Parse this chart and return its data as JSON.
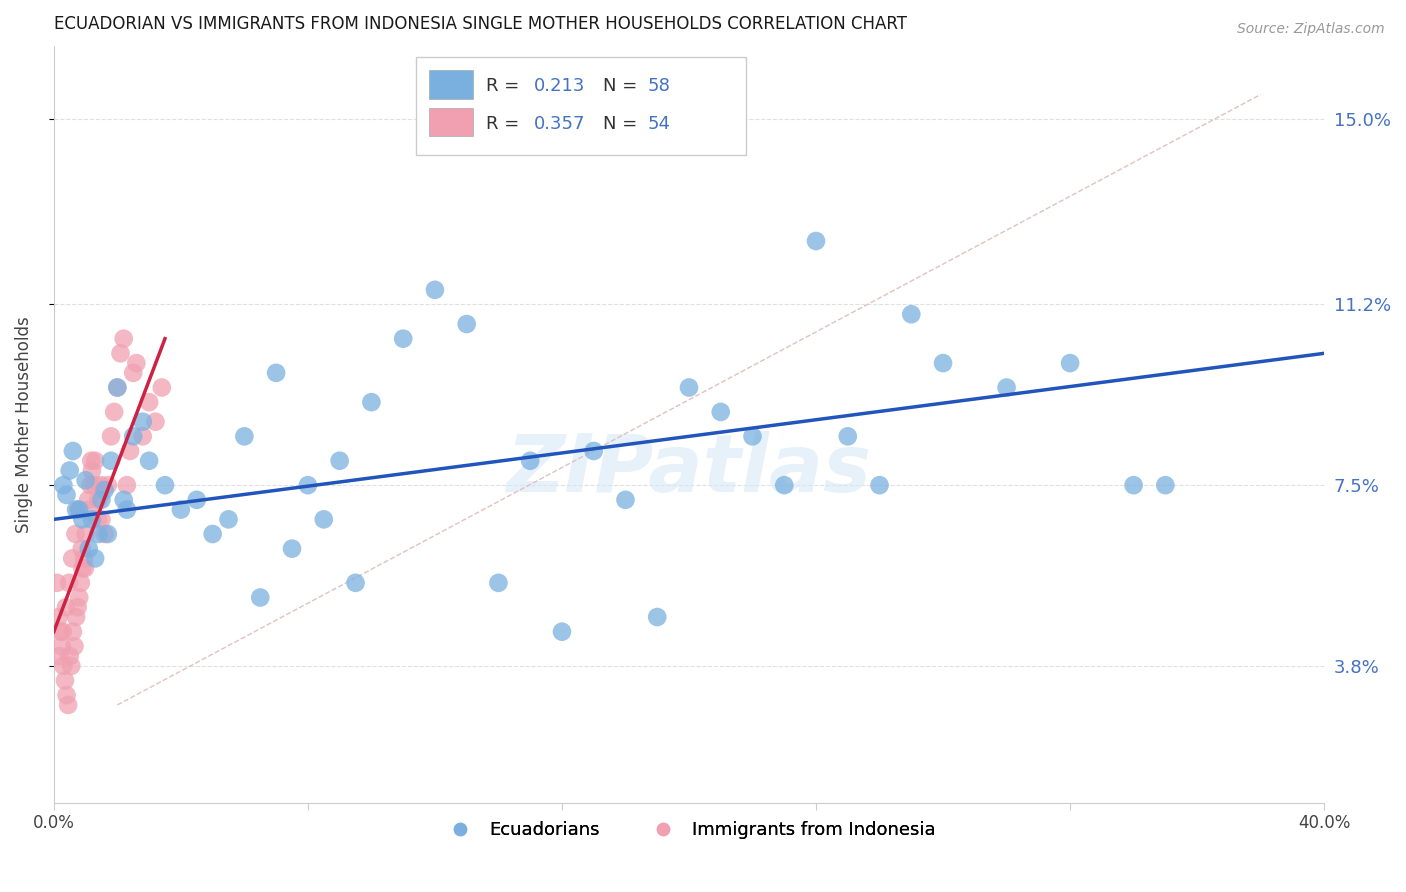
{
  "title": "ECUADORIAN VS IMMIGRANTS FROM INDONESIA SINGLE MOTHER HOUSEHOLDS CORRELATION CHART",
  "source": "Source: ZipAtlas.com",
  "ylabel": "Single Mother Households",
  "ytick_labels": [
    "3.8%",
    "7.5%",
    "11.2%",
    "15.0%"
  ],
  "ytick_values": [
    3.8,
    7.5,
    11.2,
    15.0
  ],
  "xlim": [
    0.0,
    40.0
  ],
  "ylim": [
    1.0,
    16.5
  ],
  "blue_color": "#7ab0e0",
  "pink_color": "#f0a0b0",
  "line_blue": "#2255bb",
  "line_pink": "#cc2244",
  "diagonal_color": "#ddbbbb",
  "watermark": "ZIPatlas",
  "ecuadorians_x": [
    0.3,
    0.5,
    0.6,
    0.8,
    1.0,
    1.2,
    1.4,
    1.5,
    1.6,
    1.8,
    2.0,
    2.2,
    2.5,
    2.8,
    3.0,
    3.5,
    4.0,
    4.5,
    5.0,
    5.5,
    6.0,
    6.5,
    7.0,
    7.5,
    8.0,
    8.5,
    9.0,
    9.5,
    10.0,
    11.0,
    12.0,
    13.0,
    14.0,
    15.0,
    16.0,
    17.0,
    18.0,
    19.0,
    20.0,
    21.0,
    22.0,
    23.0,
    24.0,
    25.0,
    26.0,
    27.0,
    28.0,
    30.0,
    32.0,
    34.0,
    35.0,
    0.4,
    0.7,
    0.9,
    1.1,
    1.3,
    1.7,
    2.3
  ],
  "ecuadorians_y": [
    7.5,
    7.8,
    8.2,
    7.0,
    7.6,
    6.8,
    6.5,
    7.2,
    7.4,
    8.0,
    9.5,
    7.2,
    8.5,
    8.8,
    8.0,
    7.5,
    7.0,
    7.2,
    6.5,
    6.8,
    8.5,
    5.2,
    9.8,
    6.2,
    7.5,
    6.8,
    8.0,
    5.5,
    9.2,
    10.5,
    11.5,
    10.8,
    5.5,
    8.0,
    4.5,
    8.2,
    7.2,
    4.8,
    9.5,
    9.0,
    8.5,
    7.5,
    12.5,
    8.5,
    7.5,
    11.0,
    10.0,
    9.5,
    10.0,
    7.5,
    7.5,
    7.3,
    7.0,
    6.8,
    6.2,
    6.0,
    6.5,
    7.0
  ],
  "indonesia_x": [
    0.1,
    0.15,
    0.2,
    0.25,
    0.3,
    0.35,
    0.4,
    0.45,
    0.5,
    0.55,
    0.6,
    0.65,
    0.7,
    0.75,
    0.8,
    0.85,
    0.9,
    0.95,
    1.0,
    1.1,
    1.15,
    1.2,
    1.3,
    1.4,
    1.5,
    1.6,
    1.7,
    1.8,
    1.9,
    2.0,
    2.1,
    2.2,
    2.3,
    2.4,
    2.5,
    2.6,
    2.8,
    3.0,
    3.2,
    3.4,
    0.18,
    0.28,
    0.38,
    0.48,
    0.58,
    0.68,
    0.78,
    0.88,
    0.98,
    1.08,
    1.18,
    1.28,
    1.38,
    1.48
  ],
  "indonesia_y": [
    5.5,
    4.8,
    4.5,
    4.2,
    3.8,
    3.5,
    3.2,
    3.0,
    4.0,
    3.8,
    4.5,
    4.2,
    4.8,
    5.0,
    5.2,
    5.5,
    5.8,
    6.0,
    6.5,
    7.0,
    7.5,
    7.8,
    8.0,
    7.2,
    6.8,
    6.5,
    7.5,
    8.5,
    9.0,
    9.5,
    10.2,
    10.5,
    7.5,
    8.2,
    9.8,
    10.0,
    8.5,
    9.2,
    8.8,
    9.5,
    4.0,
    4.5,
    5.0,
    5.5,
    6.0,
    6.5,
    7.0,
    6.2,
    5.8,
    7.2,
    8.0,
    7.5,
    6.8,
    7.5
  ],
  "blue_line_x": [
    0.0,
    40.0
  ],
  "blue_line_y": [
    6.8,
    10.2
  ],
  "pink_line_x": [
    0.0,
    3.5
  ],
  "pink_line_y": [
    4.5,
    10.5
  ],
  "diag_line_x": [
    2.0,
    38.0
  ],
  "diag_line_y": [
    3.0,
    15.5
  ]
}
